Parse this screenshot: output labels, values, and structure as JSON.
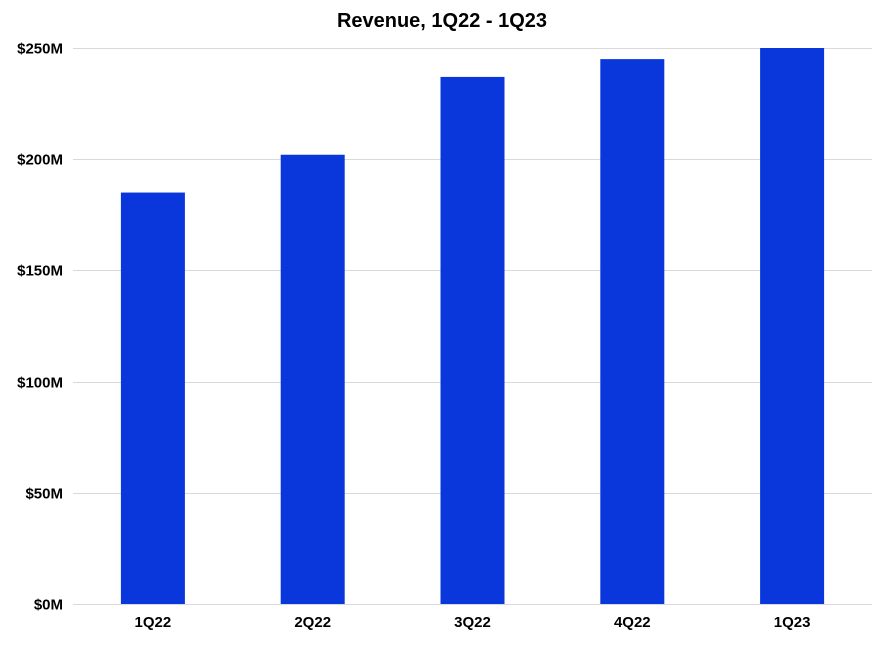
{
  "chart_data": {
    "type": "bar",
    "title": "Revenue, 1Q22 - 1Q23",
    "xlabel": "",
    "ylabel": "",
    "categories": [
      "1Q22",
      "2Q22",
      "3Q22",
      "4Q22",
      "1Q23"
    ],
    "values": [
      185,
      202,
      237,
      245,
      250
    ],
    "unit": "$M",
    "ylim": [
      0,
      250
    ],
    "yticks": [
      0,
      50,
      100,
      150,
      200,
      250
    ],
    "ytick_labels": [
      "$0M",
      "$50M",
      "$100M",
      "$150M",
      "$200M",
      "$250M"
    ],
    "grid": true,
    "legend": "none",
    "bar_color": "#0a37dc",
    "grid_color": "#d9d9d9"
  }
}
